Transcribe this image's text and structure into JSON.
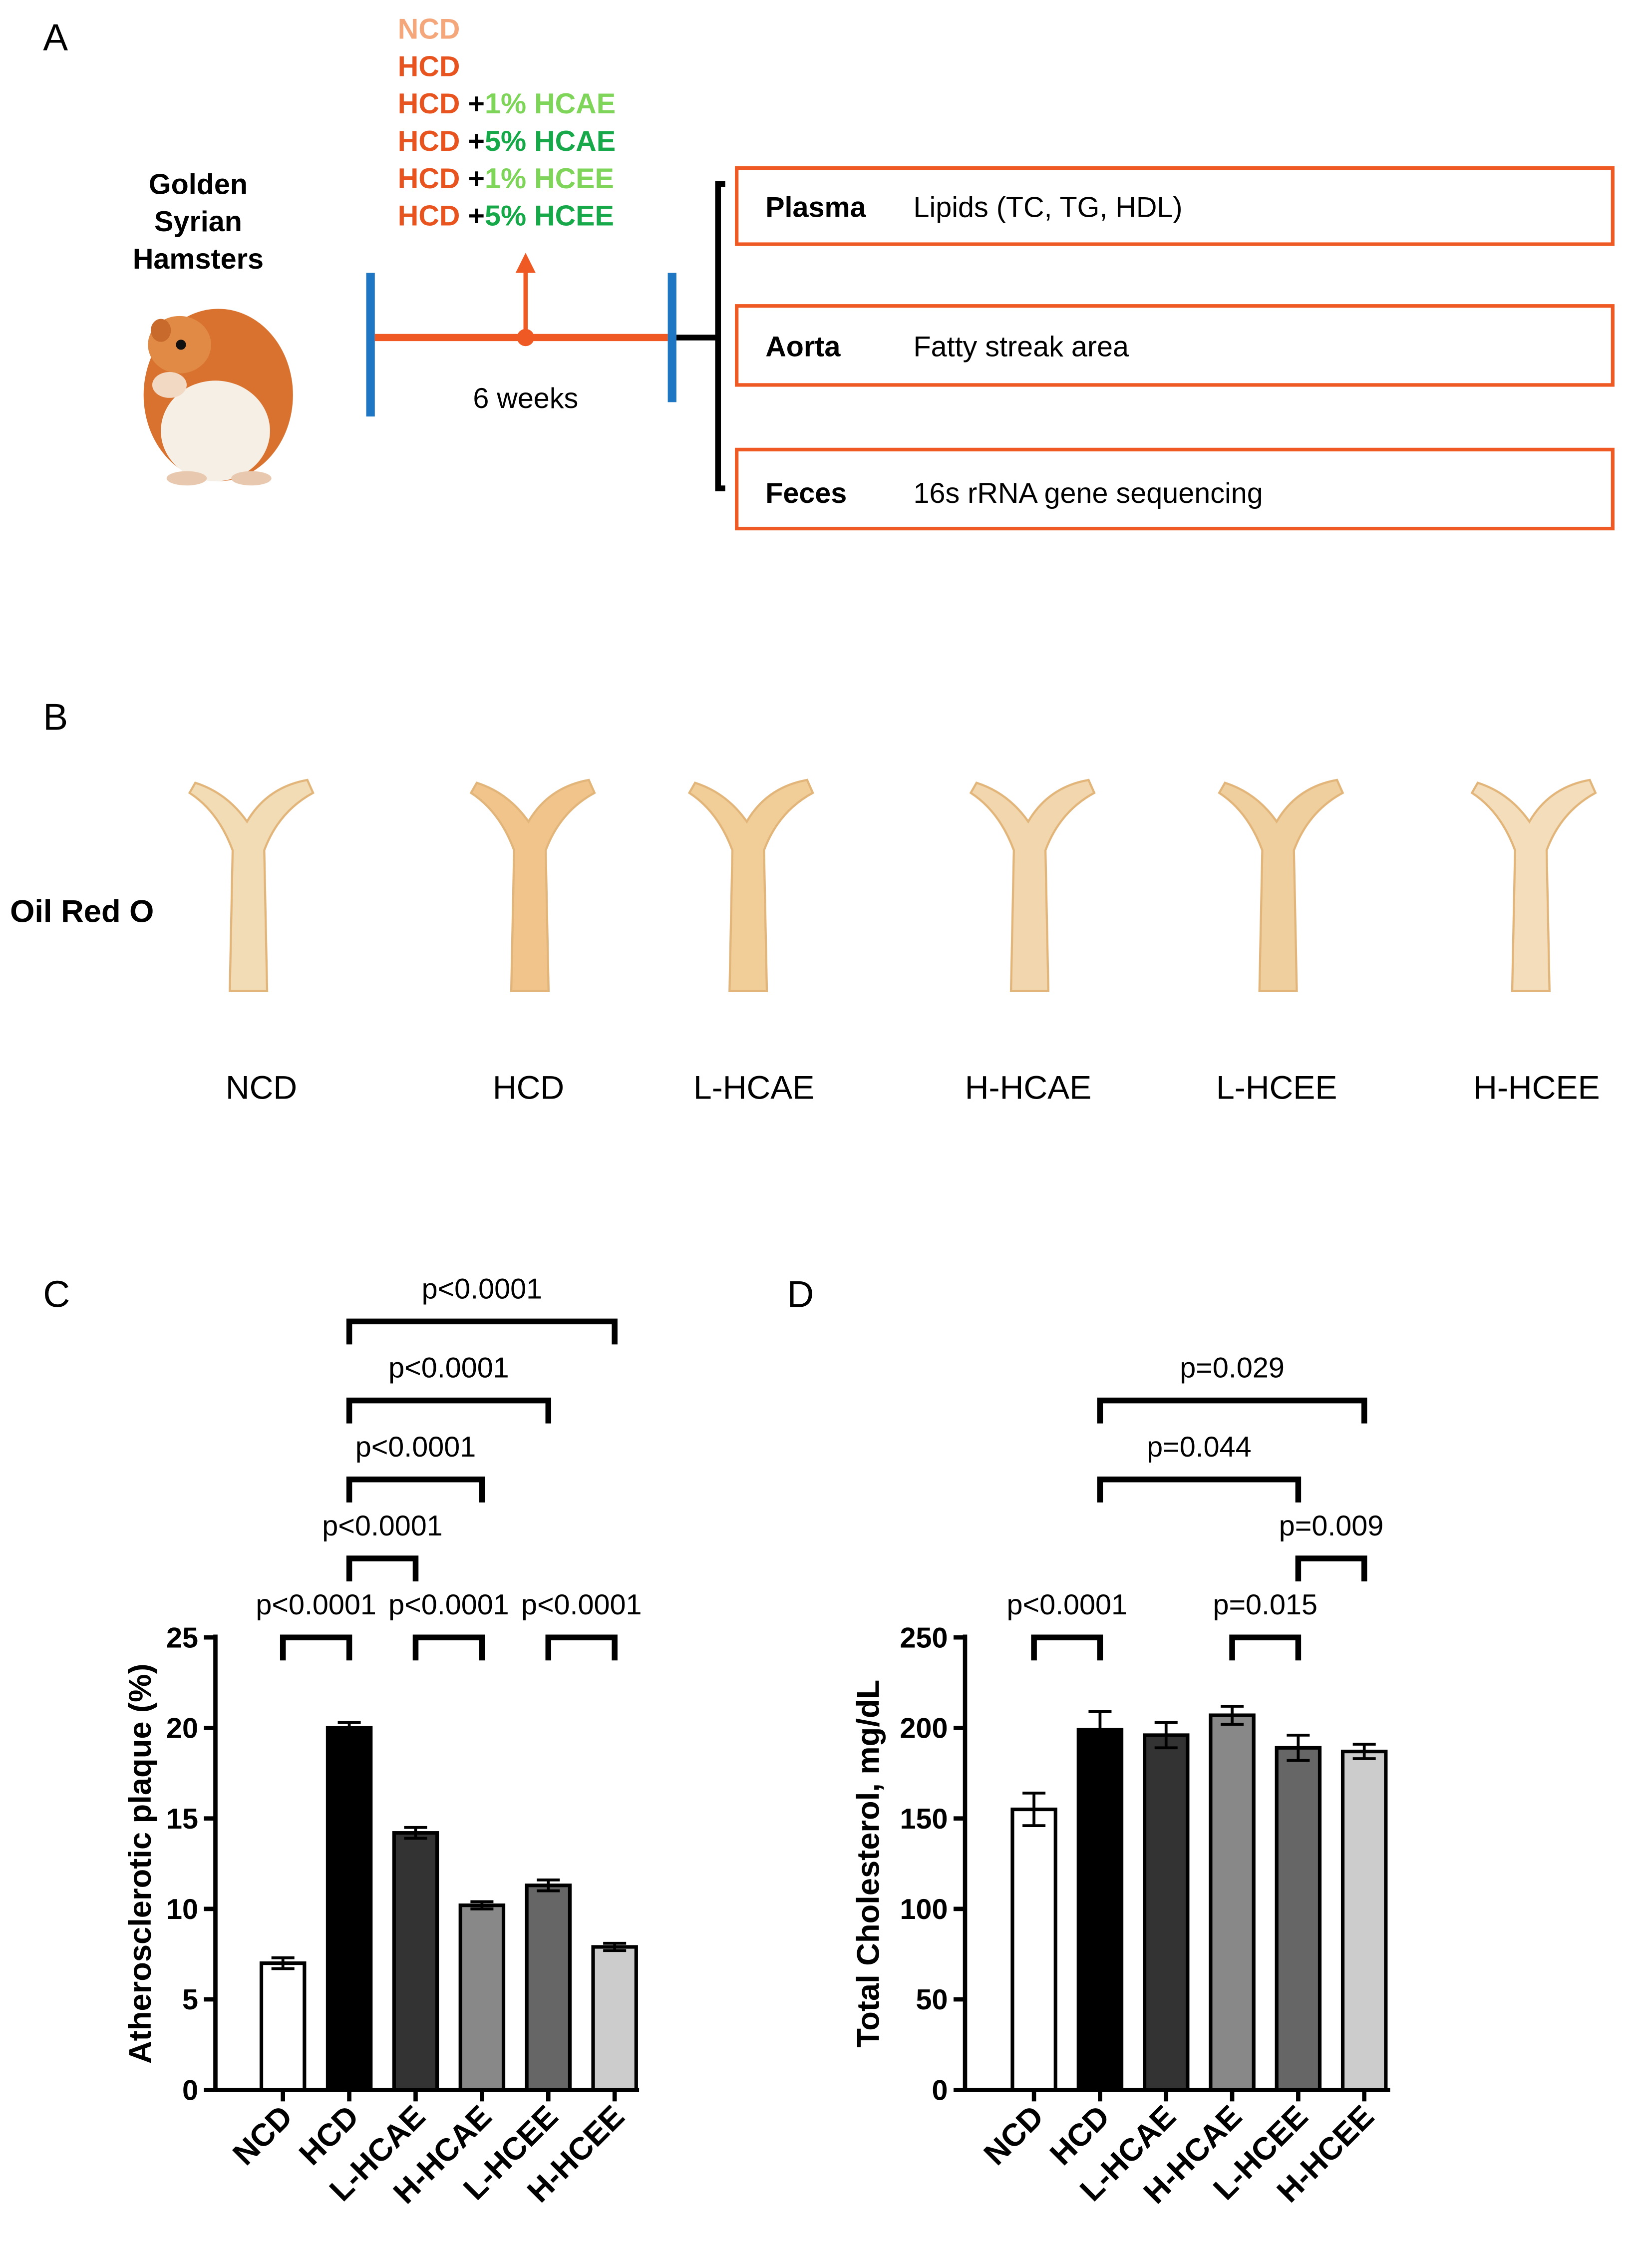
{
  "panel_labels": [
    "A",
    "B",
    "C",
    "D"
  ],
  "study_design": {
    "animal": [
      "Golden",
      "Syrian",
      "Hamsters"
    ],
    "diets": [
      [
        {
          "text": "NCD",
          "color": "#f5a77c"
        }
      ],
      [
        {
          "text": "HCD",
          "color": "#e8541f"
        }
      ],
      [
        {
          "text": "HCD",
          "color": "#e8541f"
        },
        {
          "text": " +",
          "color": "#000000"
        },
        {
          "text": "1% HCAE",
          "color": "#7fd45a"
        }
      ],
      [
        {
          "text": "HCD",
          "color": "#e8541f"
        },
        {
          "text": " +",
          "color": "#000000"
        },
        {
          "text": "5% HCAE",
          "color": "#17a84a"
        }
      ],
      [
        {
          "text": "HCD",
          "color": "#e8541f"
        },
        {
          "text": " +",
          "color": "#000000"
        },
        {
          "text": "1% HCEE",
          "color": "#7fd45a"
        }
      ],
      [
        {
          "text": "HCD",
          "color": "#e8541f"
        },
        {
          "text": " +",
          "color": "#000000"
        },
        {
          "text": "5% HCEE",
          "color": "#17a84a"
        }
      ]
    ],
    "duration": "6 weeks",
    "outcomes": [
      {
        "sample": "Plasma",
        "measure": "Lipids (TC, TG, HDL)"
      },
      {
        "sample": "Aorta",
        "measure": "Fatty streak area"
      },
      {
        "sample": "Feces",
        "measure": "16s rRNA gene sequencing"
      }
    ]
  },
  "staining": {
    "label": "Oil Red O",
    "groups": [
      "NCD",
      "HCD",
      "L-HCAE",
      "H-HCAE",
      "L-HCEE",
      "H-HCEE"
    ]
  },
  "chart_data": [
    {
      "type": "bar",
      "y_label": "Atherosclerotic plaque (%)",
      "categories": [
        "NCD",
        "HCD",
        "L-HCAE",
        "H-HCAE",
        "L-HCEE",
        "H-HCEE"
      ],
      "values": [
        7.0,
        20.0,
        14.2,
        10.2,
        11.3,
        7.9
      ],
      "errors": [
        0.3,
        0.3,
        0.3,
        0.2,
        0.3,
        0.2
      ],
      "colors": [
        "#ffffff",
        "#000000",
        "#333333",
        "#888888",
        "#666666",
        "#cccccc"
      ],
      "ylim": [
        0,
        25
      ],
      "yticks": [
        0,
        5,
        10,
        15,
        20,
        25
      ],
      "brackets": [
        {
          "from": 0,
          "to": 1,
          "label": "p<0.0001"
        },
        {
          "from": 2,
          "to": 3,
          "label": "p<0.0001"
        },
        {
          "from": 4,
          "to": 5,
          "label": "p<0.0001"
        },
        {
          "from": 1,
          "to": 2,
          "label": "p<0.0001"
        },
        {
          "from": 1,
          "to": 3,
          "label": "p<0.0001"
        },
        {
          "from": 1,
          "to": 4,
          "label": "p<0.0001"
        },
        {
          "from": 1,
          "to": 5,
          "label": "p<0.0001"
        }
      ]
    },
    {
      "type": "bar",
      "y_label": "Total Cholesterol, mg/dL",
      "categories": [
        "NCD",
        "HCD",
        "L-HCAE",
        "H-HCAE",
        "L-HCEE",
        "H-HCEE"
      ],
      "values": [
        155,
        199,
        196,
        207,
        189,
        187
      ],
      "errors": [
        9,
        10,
        7,
        5,
        7,
        4
      ],
      "colors": [
        "#ffffff",
        "#000000",
        "#333333",
        "#888888",
        "#666666",
        "#cccccc"
      ],
      "ylim": [
        0,
        250
      ],
      "yticks": [
        0,
        50,
        100,
        150,
        200,
        250
      ],
      "brackets": [
        {
          "from": 0,
          "to": 1,
          "label": "p<0.0001"
        },
        {
          "from": 3,
          "to": 4,
          "label": "p=0.015"
        },
        {
          "from": 4,
          "to": 5,
          "label": "p=0.009"
        },
        {
          "from": 1,
          "to": 4,
          "label": "p=0.044"
        },
        {
          "from": 1,
          "to": 5,
          "label": "p=0.029"
        }
      ]
    }
  ]
}
